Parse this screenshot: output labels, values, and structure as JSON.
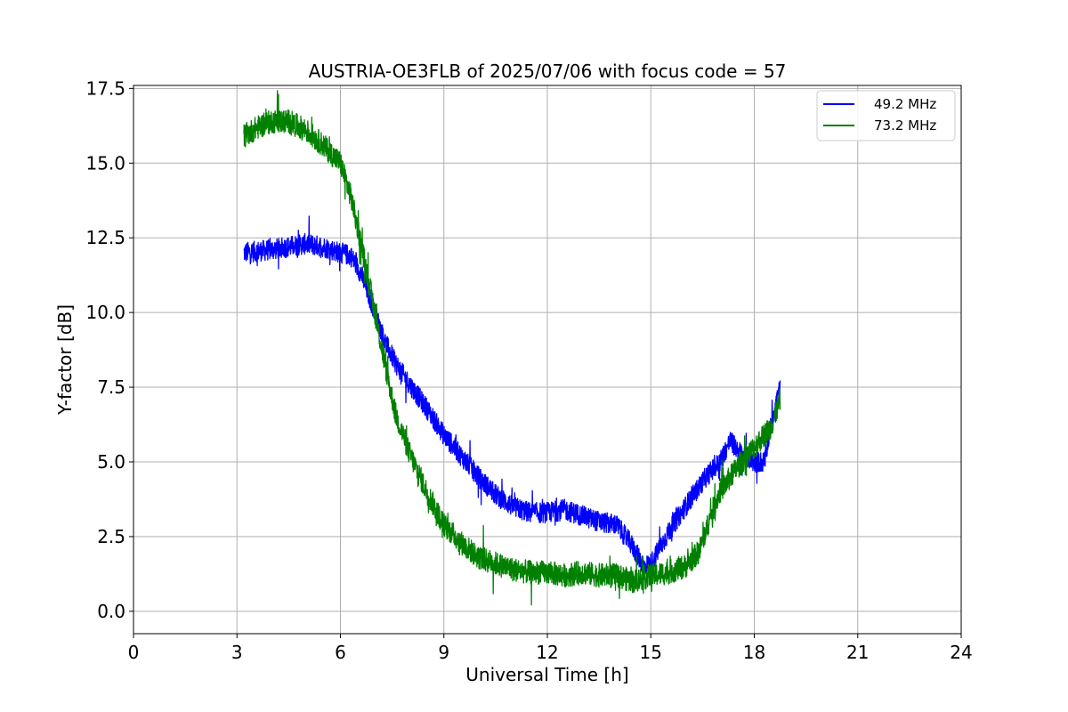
{
  "chart_data": {
    "type": "line",
    "title": "AUSTRIA-OE3FLB of 2025/07/06 with focus code = 57",
    "xlabel": "Universal Time [h]",
    "ylabel": "Y-factor [dB]",
    "xlim": [
      0,
      24
    ],
    "ylim": [
      -0.75,
      17.6
    ],
    "xticks": [
      0,
      3,
      6,
      9,
      12,
      15,
      18,
      21,
      24
    ],
    "yticks": [
      0.0,
      2.5,
      5.0,
      7.5,
      10.0,
      12.5,
      15.0,
      17.5
    ],
    "ytick_labels": [
      "0.0",
      "2.5",
      "5.0",
      "7.5",
      "10.0",
      "12.5",
      "15.0",
      "17.5"
    ],
    "grid": true,
    "legend_position": "top-right",
    "series": [
      {
        "name": "49.2 MHz",
        "color": "#0000ff",
        "noise_amplitude": 0.35,
        "x": [
          3.2,
          4.0,
          5.0,
          5.5,
          6.0,
          6.3,
          6.6,
          7.0,
          7.3,
          7.6,
          8.0,
          8.5,
          9.0,
          9.5,
          10.0,
          10.5,
          11.0,
          11.5,
          12.0,
          12.5,
          13.0,
          13.5,
          14.0,
          14.4,
          14.8,
          15.0,
          15.3,
          15.6,
          16.0,
          16.3,
          16.6,
          17.0,
          17.3,
          17.6,
          18.0,
          18.3,
          18.5,
          18.75
        ],
        "y": [
          12.0,
          12.1,
          12.3,
          12.2,
          12.0,
          11.9,
          11.3,
          10.0,
          9.0,
          8.3,
          7.6,
          6.8,
          5.9,
          5.2,
          4.5,
          3.9,
          3.5,
          3.3,
          3.3,
          3.4,
          3.2,
          3.0,
          2.9,
          2.3,
          1.5,
          1.6,
          2.2,
          2.8,
          3.5,
          4.0,
          4.5,
          5.0,
          5.7,
          5.3,
          5.0,
          5.0,
          6.4,
          7.5
        ]
      },
      {
        "name": "73.2 MHz",
        "color": "#008000",
        "noise_amplitude": 0.4,
        "x": [
          3.2,
          3.6,
          4.0,
          4.5,
          5.0,
          5.5,
          6.0,
          6.3,
          6.6,
          7.0,
          7.3,
          7.6,
          8.0,
          8.5,
          9.0,
          9.5,
          10.0,
          10.5,
          11.0,
          11.5,
          12.0,
          12.5,
          13.0,
          13.5,
          14.0,
          14.5,
          15.0,
          15.5,
          16.0,
          16.4,
          16.8,
          17.0,
          17.5,
          18.0,
          18.5,
          18.75
        ],
        "y": [
          15.9,
          16.2,
          16.4,
          16.4,
          16.1,
          15.6,
          15.0,
          13.9,
          12.3,
          10.0,
          8.2,
          6.6,
          5.3,
          4.0,
          2.9,
          2.3,
          1.8,
          1.6,
          1.4,
          1.3,
          1.3,
          1.2,
          1.3,
          1.2,
          1.2,
          1.0,
          1.2,
          1.3,
          1.5,
          2.0,
          3.4,
          4.0,
          4.8,
          5.5,
          6.2,
          7.1
        ]
      }
    ]
  }
}
